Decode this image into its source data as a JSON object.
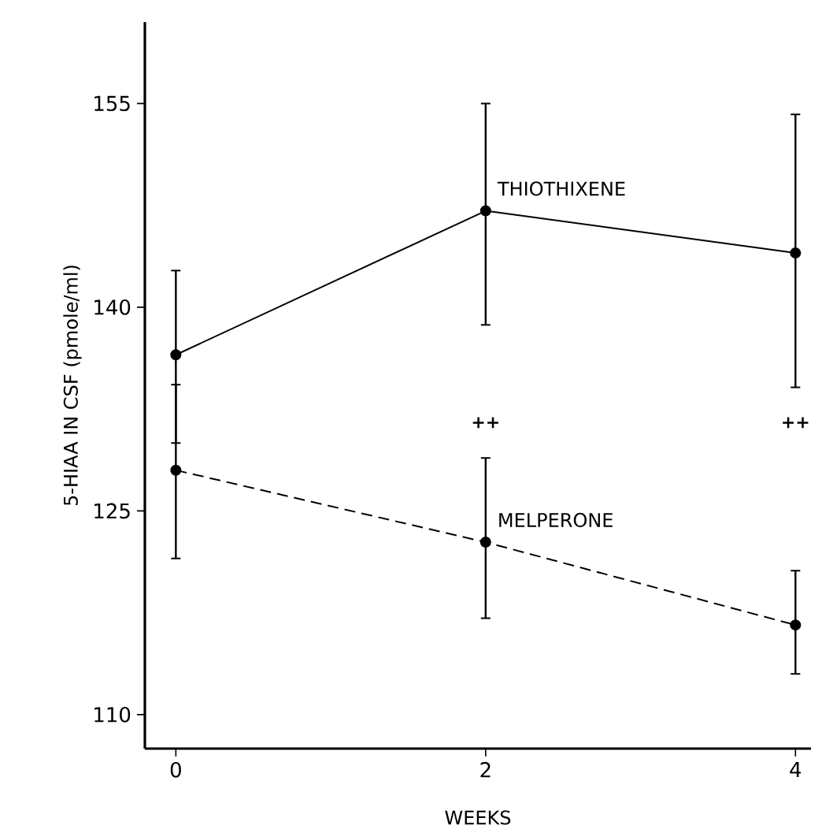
{
  "chart_data": {
    "type": "line",
    "xlabel": "WEEKS",
    "ylabel": "5-HIAA IN CSF (pmole/ml)",
    "x": [
      0,
      2,
      4
    ],
    "series": [
      {
        "name": "THIOTHIXENE",
        "color": "#000000",
        "line_style": "solid",
        "values": [
          136.5,
          147.1,
          144.0
        ],
        "errors": [
          [
            130.0,
            142.7
          ],
          [
            138.7,
            155.0
          ],
          [
            134.1,
            154.2
          ]
        ]
      },
      {
        "name": "MELPERONE",
        "color": "#000000",
        "line_style": "dashed",
        "values": [
          128.0,
          122.7,
          116.6
        ],
        "errors": [
          [
            121.5,
            134.3
          ],
          [
            117.1,
            128.9
          ],
          [
            113.0,
            120.6
          ]
        ]
      }
    ],
    "xlim": [
      -0.2,
      4.1
    ],
    "ylim": [
      107.5,
      161
    ],
    "xticks": [
      0,
      2,
      4
    ],
    "yticks": [
      110,
      125,
      140,
      155
    ],
    "marker": "circle",
    "grid": false,
    "annotations": [
      "++",
      "++"
    ]
  }
}
